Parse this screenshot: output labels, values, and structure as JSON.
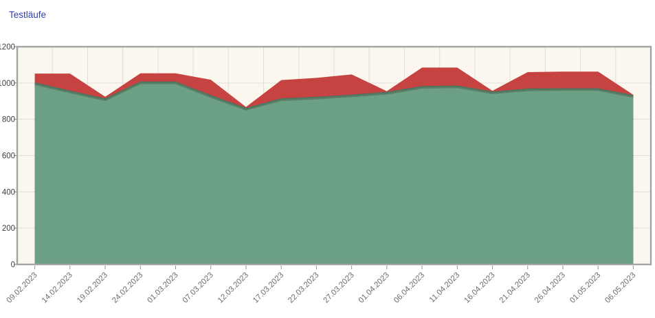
{
  "page": {
    "background_color": "#ffffff"
  },
  "header": {
    "title": "Testläufe",
    "title_color": "#2d3fb0"
  },
  "chart_data": {
    "type": "area",
    "stacked": true,
    "title": "Testläufe",
    "xlabel": "",
    "ylabel": "",
    "ylim": [
      0,
      1200
    ],
    "y_tick_step": 200,
    "y_tick_labels": [
      "0",
      "200",
      "400",
      "600",
      "800",
      "1000",
      "1200"
    ],
    "grid": "on",
    "legend": "none",
    "plot_background": "#fbf7ee",
    "grid_color": "#dedeDA",
    "border_color": "#a3a3a1",
    "categories": [
      "09.02.2023",
      "14.02.2023",
      "19.02.2023",
      "24.02.2023",
      "01.03.2023",
      "07.03.2023",
      "12.03.2023",
      "17.03.2023",
      "22.03.2023",
      "27.03.2023",
      "01.04.2023",
      "06.04.2023",
      "11.04.2023",
      "16.04.2023",
      "21.04.2023",
      "26.04.2023",
      "01.05.2023",
      "06.05.2023"
    ],
    "series": [
      {
        "id": "green-lower-band",
        "color": "#6ca084",
        "edge_color": "#4a7560",
        "values": [
          1000,
          955,
          912,
          1005,
          1005,
          930,
          860,
          912,
          921,
          933,
          948,
          980,
          983,
          950,
          967,
          968,
          968,
          930
        ]
      },
      {
        "id": "red-upper-band",
        "color": "#c64341",
        "values": [
          52,
          97,
          12,
          48,
          48,
          88,
          8,
          104,
          107,
          114,
          7,
          105,
          102,
          7,
          93,
          95,
          95,
          5
        ]
      }
    ],
    "stack_totals": [
      1052,
      1052,
      924,
      1053,
      1053,
      1018,
      868,
      1016,
      1028,
      1047,
      955,
      1085,
      1085,
      957,
      1060,
      1063,
      1063,
      935
    ]
  }
}
